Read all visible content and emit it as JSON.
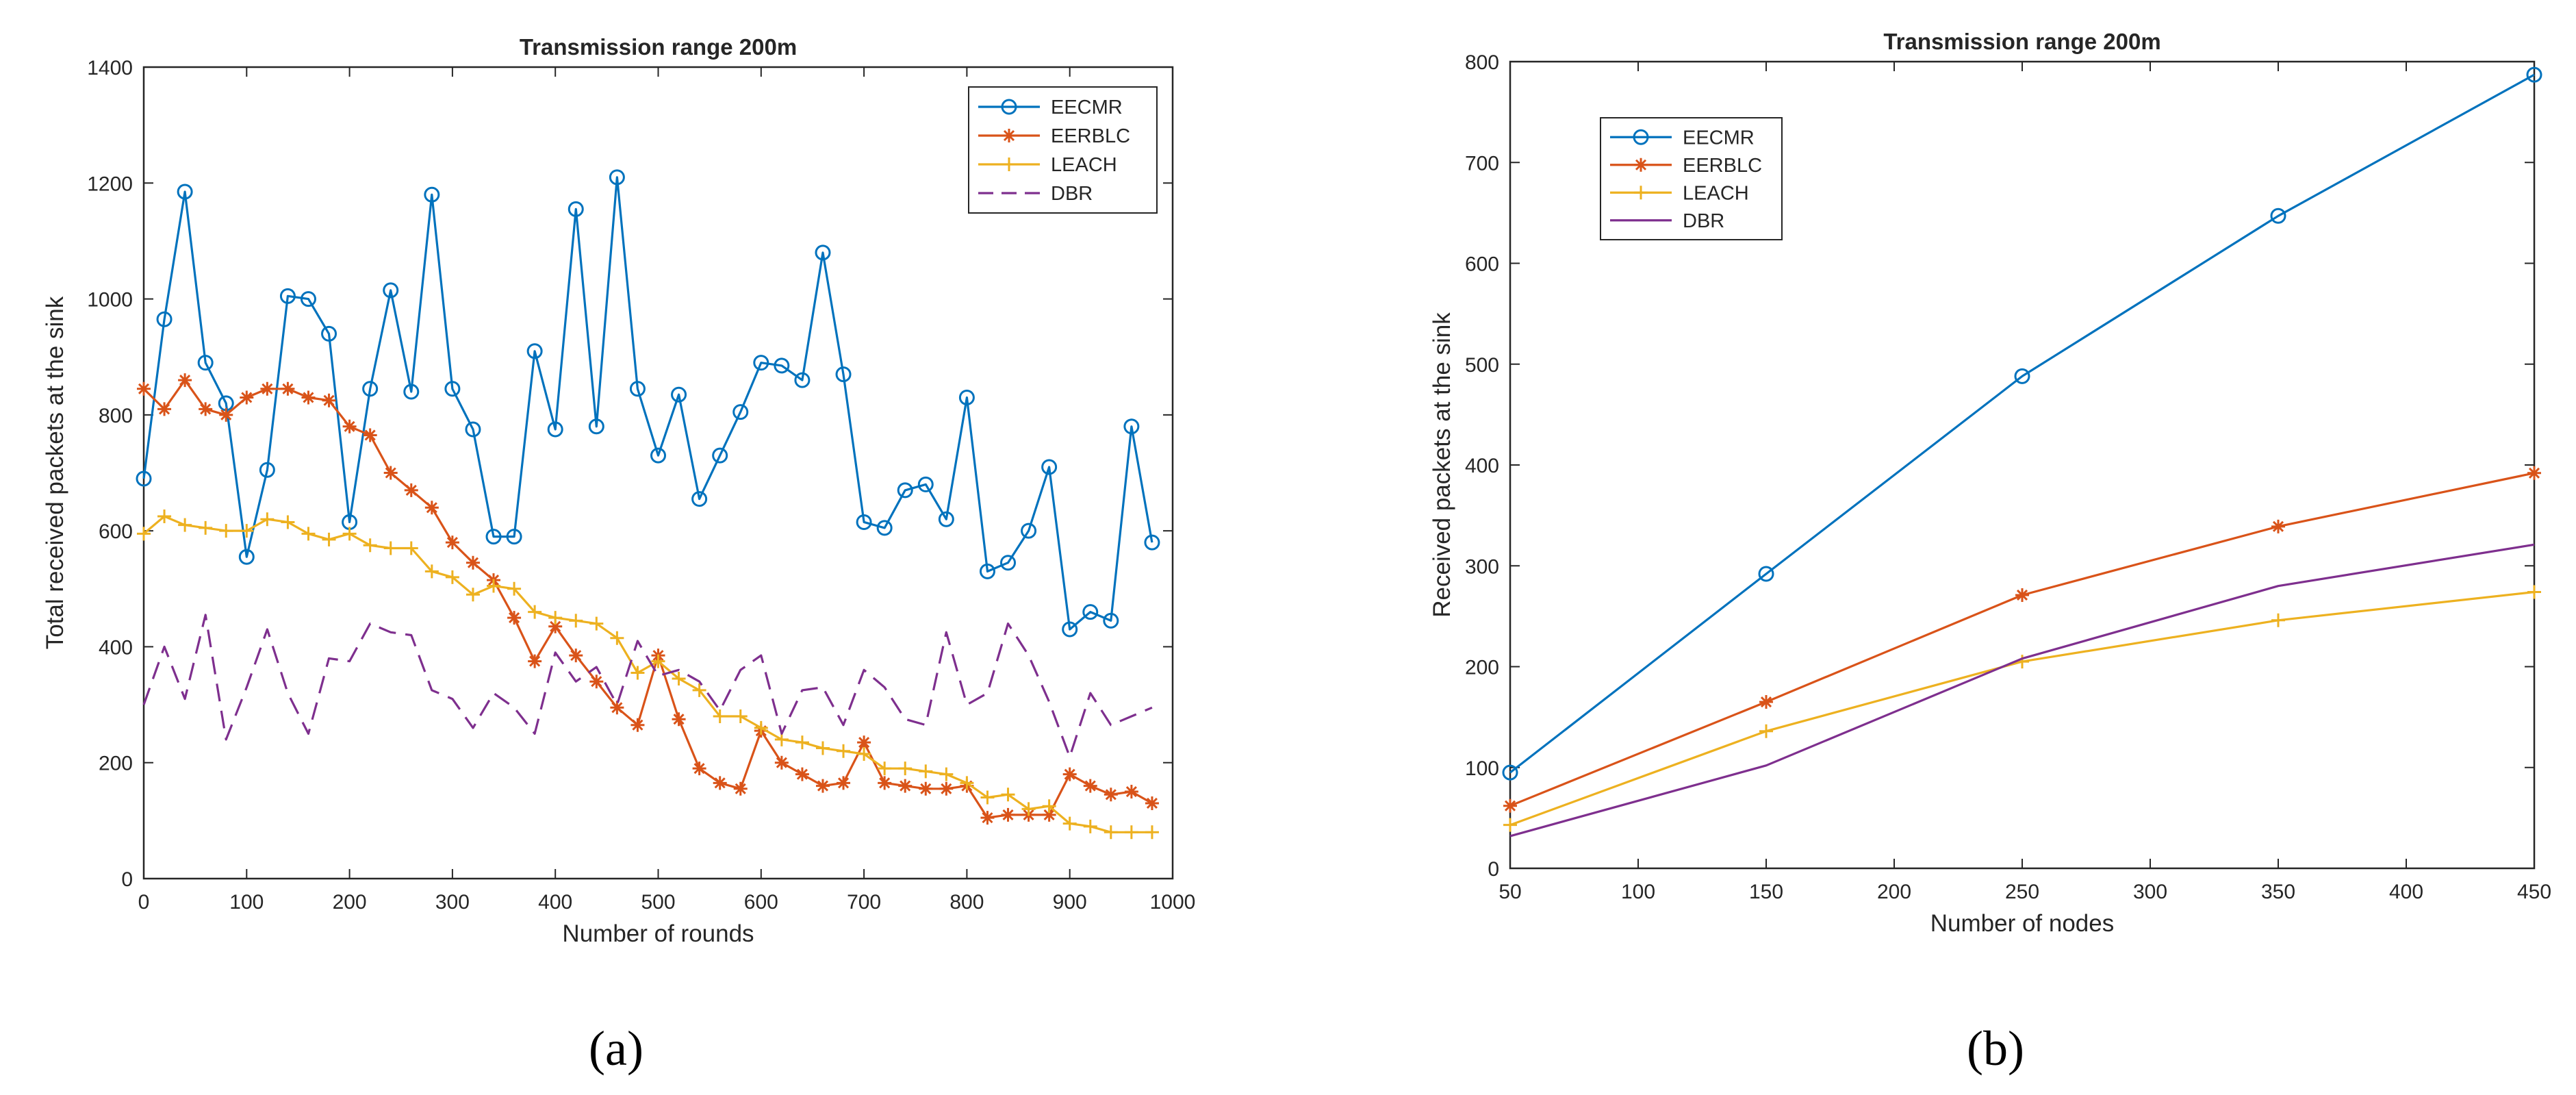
{
  "chart_data": [
    {
      "type": "line",
      "panel_label": "(a)",
      "title": "Transmission range 200m",
      "xlabel": "Number of rounds",
      "ylabel": "Total received packets at the sink",
      "xlim": [
        0,
        1000
      ],
      "ylim": [
        0,
        1400
      ],
      "xticks": [
        0,
        100,
        200,
        300,
        400,
        500,
        600,
        700,
        800,
        900,
        1000
      ],
      "yticks": [
        0,
        200,
        400,
        600,
        800,
        1000,
        1200,
        1400
      ],
      "grid": false,
      "legend_position": "top-right",
      "x": [
        0,
        20,
        40,
        60,
        80,
        100,
        120,
        140,
        160,
        180,
        200,
        220,
        240,
        260,
        280,
        300,
        320,
        340,
        360,
        380,
        400,
        420,
        440,
        460,
        480,
        500,
        520,
        540,
        560,
        580,
        600,
        620,
        640,
        660,
        680,
        700,
        720,
        740,
        760,
        780,
        800,
        820,
        840,
        860,
        880,
        900,
        920,
        940,
        960,
        980
      ],
      "series": [
        {
          "name": "EECMR",
          "color": "#0072BD",
          "marker": "circle",
          "dash": "solid",
          "values": [
            690,
            965,
            1185,
            890,
            820,
            555,
            705,
            1005,
            1000,
            940,
            615,
            845,
            1015,
            840,
            1180,
            845,
            775,
            590,
            590,
            910,
            775,
            1155,
            780,
            1210,
            845,
            730,
            835,
            655,
            730,
            805,
            890,
            885,
            860,
            1080,
            870,
            615,
            605,
            670,
            680,
            620,
            830,
            530,
            545,
            600,
            710,
            430,
            460,
            445,
            780,
            580
          ]
        },
        {
          "name": "EERBLC",
          "color": "#D95319",
          "marker": "asterisk",
          "dash": "solid",
          "values": [
            845,
            810,
            860,
            810,
            800,
            830,
            845,
            845,
            830,
            825,
            780,
            765,
            700,
            670,
            640,
            580,
            545,
            515,
            450,
            375,
            435,
            385,
            340,
            295,
            265,
            385,
            275,
            190,
            165,
            155,
            255,
            200,
            180,
            160,
            165,
            235,
            165,
            160,
            155,
            155,
            160,
            105,
            110,
            110,
            110,
            180,
            160,
            145,
            150,
            130
          ]
        },
        {
          "name": "LEACH",
          "color": "#EDB120",
          "marker": "plus",
          "dash": "solid",
          "values": [
            595,
            625,
            610,
            605,
            600,
            600,
            620,
            615,
            595,
            585,
            595,
            575,
            570,
            570,
            530,
            520,
            490,
            505,
            500,
            460,
            450,
            445,
            440,
            415,
            355,
            375,
            345,
            325,
            280,
            280,
            260,
            240,
            235,
            225,
            220,
            215,
            190,
            190,
            185,
            180,
            165,
            140,
            145,
            120,
            125,
            95,
            90,
            80,
            80,
            80
          ]
        },
        {
          "name": "DBR",
          "color": "#7E2F8E",
          "marker": "none",
          "dash": "dashed",
          "values": [
            300,
            400,
            310,
            455,
            240,
            330,
            430,
            320,
            250,
            380,
            375,
            440,
            425,
            420,
            325,
            310,
            260,
            320,
            295,
            250,
            390,
            340,
            365,
            300,
            410,
            350,
            360,
            340,
            290,
            360,
            385,
            250,
            325,
            330,
            265,
            360,
            330,
            275,
            265,
            425,
            300,
            320,
            440,
            385,
            305,
            210,
            320,
            265,
            280,
            295
          ]
        }
      ]
    },
    {
      "type": "line",
      "panel_label": "(b)",
      "title": "Transmission range 200m",
      "xlabel": "Number of nodes",
      "ylabel": "Received packets at the sink",
      "xlim": [
        50,
        450
      ],
      "ylim": [
        0,
        800
      ],
      "xticks": [
        50,
        100,
        150,
        200,
        250,
        300,
        350,
        400,
        450
      ],
      "yticks": [
        0,
        100,
        200,
        300,
        400,
        500,
        600,
        700,
        800
      ],
      "grid": false,
      "legend_position": "top-left",
      "x": [
        50,
        150,
        250,
        350,
        450
      ],
      "series": [
        {
          "name": "EECMR",
          "color": "#0072BD",
          "marker": "circle",
          "dash": "solid",
          "values": [
            95,
            292,
            488,
            647,
            787
          ]
        },
        {
          "name": "EERBLC",
          "color": "#D95319",
          "marker": "asterisk",
          "dash": "solid",
          "values": [
            62,
            165,
            271,
            339,
            392
          ]
        },
        {
          "name": "LEACH",
          "color": "#EDB120",
          "marker": "plus",
          "dash": "solid",
          "values": [
            43,
            136,
            205,
            246,
            274
          ]
        },
        {
          "name": "DBR",
          "color": "#7E2F8E",
          "marker": "none",
          "dash": "solid",
          "values": [
            32,
            102,
            208,
            280,
            321
          ]
        }
      ]
    }
  ]
}
